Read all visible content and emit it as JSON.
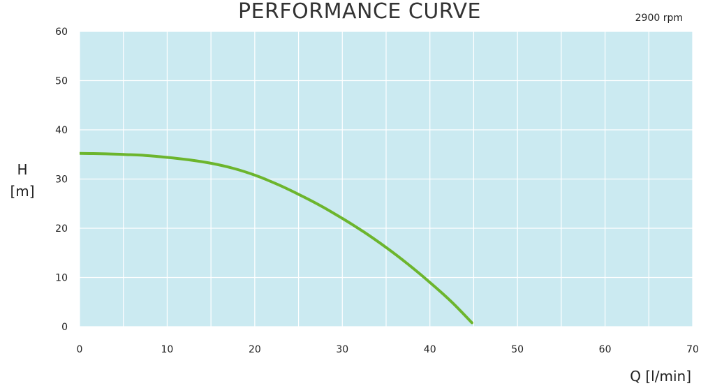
{
  "chart_data": {
    "type": "line",
    "title": "PERFORMANCE CURVE",
    "annotation": "2900 rpm",
    "ylabel": [
      "H",
      "[m]"
    ],
    "xlabel": "Q [l/min]",
    "xlim": [
      0,
      70
    ],
    "ylim": [
      0,
      60
    ],
    "x_ticks": [
      0,
      10,
      20,
      30,
      40,
      50,
      60,
      70
    ],
    "y_ticks": [
      0,
      10,
      20,
      30,
      40,
      50,
      60
    ],
    "x_grid_step": 5,
    "y_grid_step": 10,
    "grid": true,
    "colors": {
      "plot_background": "#cbeaf1",
      "grid": "#ffffff",
      "curve": "#6cb52d"
    },
    "series": [
      {
        "x": [
          0,
          2.5,
          5,
          7.5,
          10,
          12.5,
          15,
          17.5,
          20,
          22.5,
          25,
          27.5,
          30,
          32.5,
          35,
          37.5,
          40,
          42.5,
          44.8
        ],
        "y": [
          35.2,
          35.15,
          35.0,
          34.8,
          34.4,
          33.9,
          33.2,
          32.2,
          30.8,
          29.0,
          26.9,
          24.6,
          22.0,
          19.2,
          16.1,
          12.7,
          9.0,
          5.0,
          0.8
        ]
      }
    ]
  }
}
